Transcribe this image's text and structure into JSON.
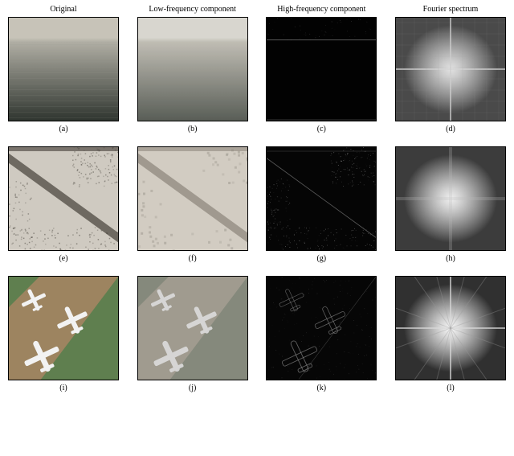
{
  "columns": [
    {
      "label": "Original"
    },
    {
      "label": "Low-frequency component"
    },
    {
      "label": "High-frequency component"
    },
    {
      "label": "Fourier spectrum"
    }
  ],
  "rows": [
    {
      "panels": [
        {
          "caption": "(a)",
          "type": "original",
          "bg_top": "#c7c3b8",
          "bg_mid": "#b0aea4",
          "bg_bottom": "#2e342e",
          "horizon_y": 0.22,
          "stripes": true,
          "stripe_color": "#a0a098",
          "border_color": "#000000"
        },
        {
          "caption": "(b)",
          "type": "lowfreq",
          "bg_top": "#d6d4cc",
          "bg_mid": "#bcb9af",
          "bg_bottom": "#4e534c",
          "horizon_y": 0.22,
          "blur": true,
          "border_color": "#000000"
        },
        {
          "caption": "(c)",
          "type": "highfreq",
          "bg": "#020202",
          "edge_color": "#8f8f8f",
          "horizon_y": 0.22,
          "noise_rows": 5,
          "border_color": "#000000"
        },
        {
          "caption": "(d)",
          "type": "spectrum",
          "bg": "#4a4a4a",
          "center_color": "#e2e2e2",
          "cross_color": "#d4d4d4",
          "grid_pattern": true,
          "grid_color": "#9a9a9a",
          "border_color": "#000000"
        }
      ]
    },
    {
      "panels": [
        {
          "caption": "(e)",
          "type": "original",
          "bg": "#cfcac1",
          "road_color": "#555048",
          "texture_color": "#3a362f",
          "diag_road": true,
          "border_color": "#000000"
        },
        {
          "caption": "(f)",
          "type": "lowfreq",
          "bg": "#d2ccc2",
          "road_color": "#6d665c",
          "texture_color": "#5b564d",
          "diag_road": true,
          "blur": true,
          "border_color": "#000000"
        },
        {
          "caption": "(g)",
          "type": "highfreq",
          "bg": "#050505",
          "edge_color": "#b0b0b0",
          "diag_road": true,
          "speckle": true,
          "border_color": "#000000"
        },
        {
          "caption": "(h)",
          "type": "spectrum",
          "bg": "#3c3c3c",
          "center_color": "#f0f0f0",
          "cross_color": "#bababa",
          "soft_cross": true,
          "border_color": "#000000"
        }
      ]
    },
    {
      "panels": [
        {
          "caption": "(i)",
          "type": "original",
          "ground_a": "#9d8460",
          "ground_b": "#5f7f4f",
          "plane_color": "#f2f2f2",
          "border_color": "#000000"
        },
        {
          "caption": "(j)",
          "type": "lowfreq",
          "ground_a": "#a39e90",
          "ground_b": "#85897a",
          "plane_color": "#e8e8e8",
          "blur": true,
          "border_color": "#000000"
        },
        {
          "caption": "(k)",
          "type": "highfreq",
          "bg": "#060606",
          "edge_color": "#9a9a9a",
          "planes_outline": true,
          "border_color": "#000000"
        },
        {
          "caption": "(l)",
          "type": "spectrum",
          "bg": "#303030",
          "center_color": "#f8f8f8",
          "cross_color": "#d8d8d8",
          "star_rays": true,
          "ray_color": "#9a9a9a",
          "border_color": "#000000"
        }
      ]
    }
  ]
}
